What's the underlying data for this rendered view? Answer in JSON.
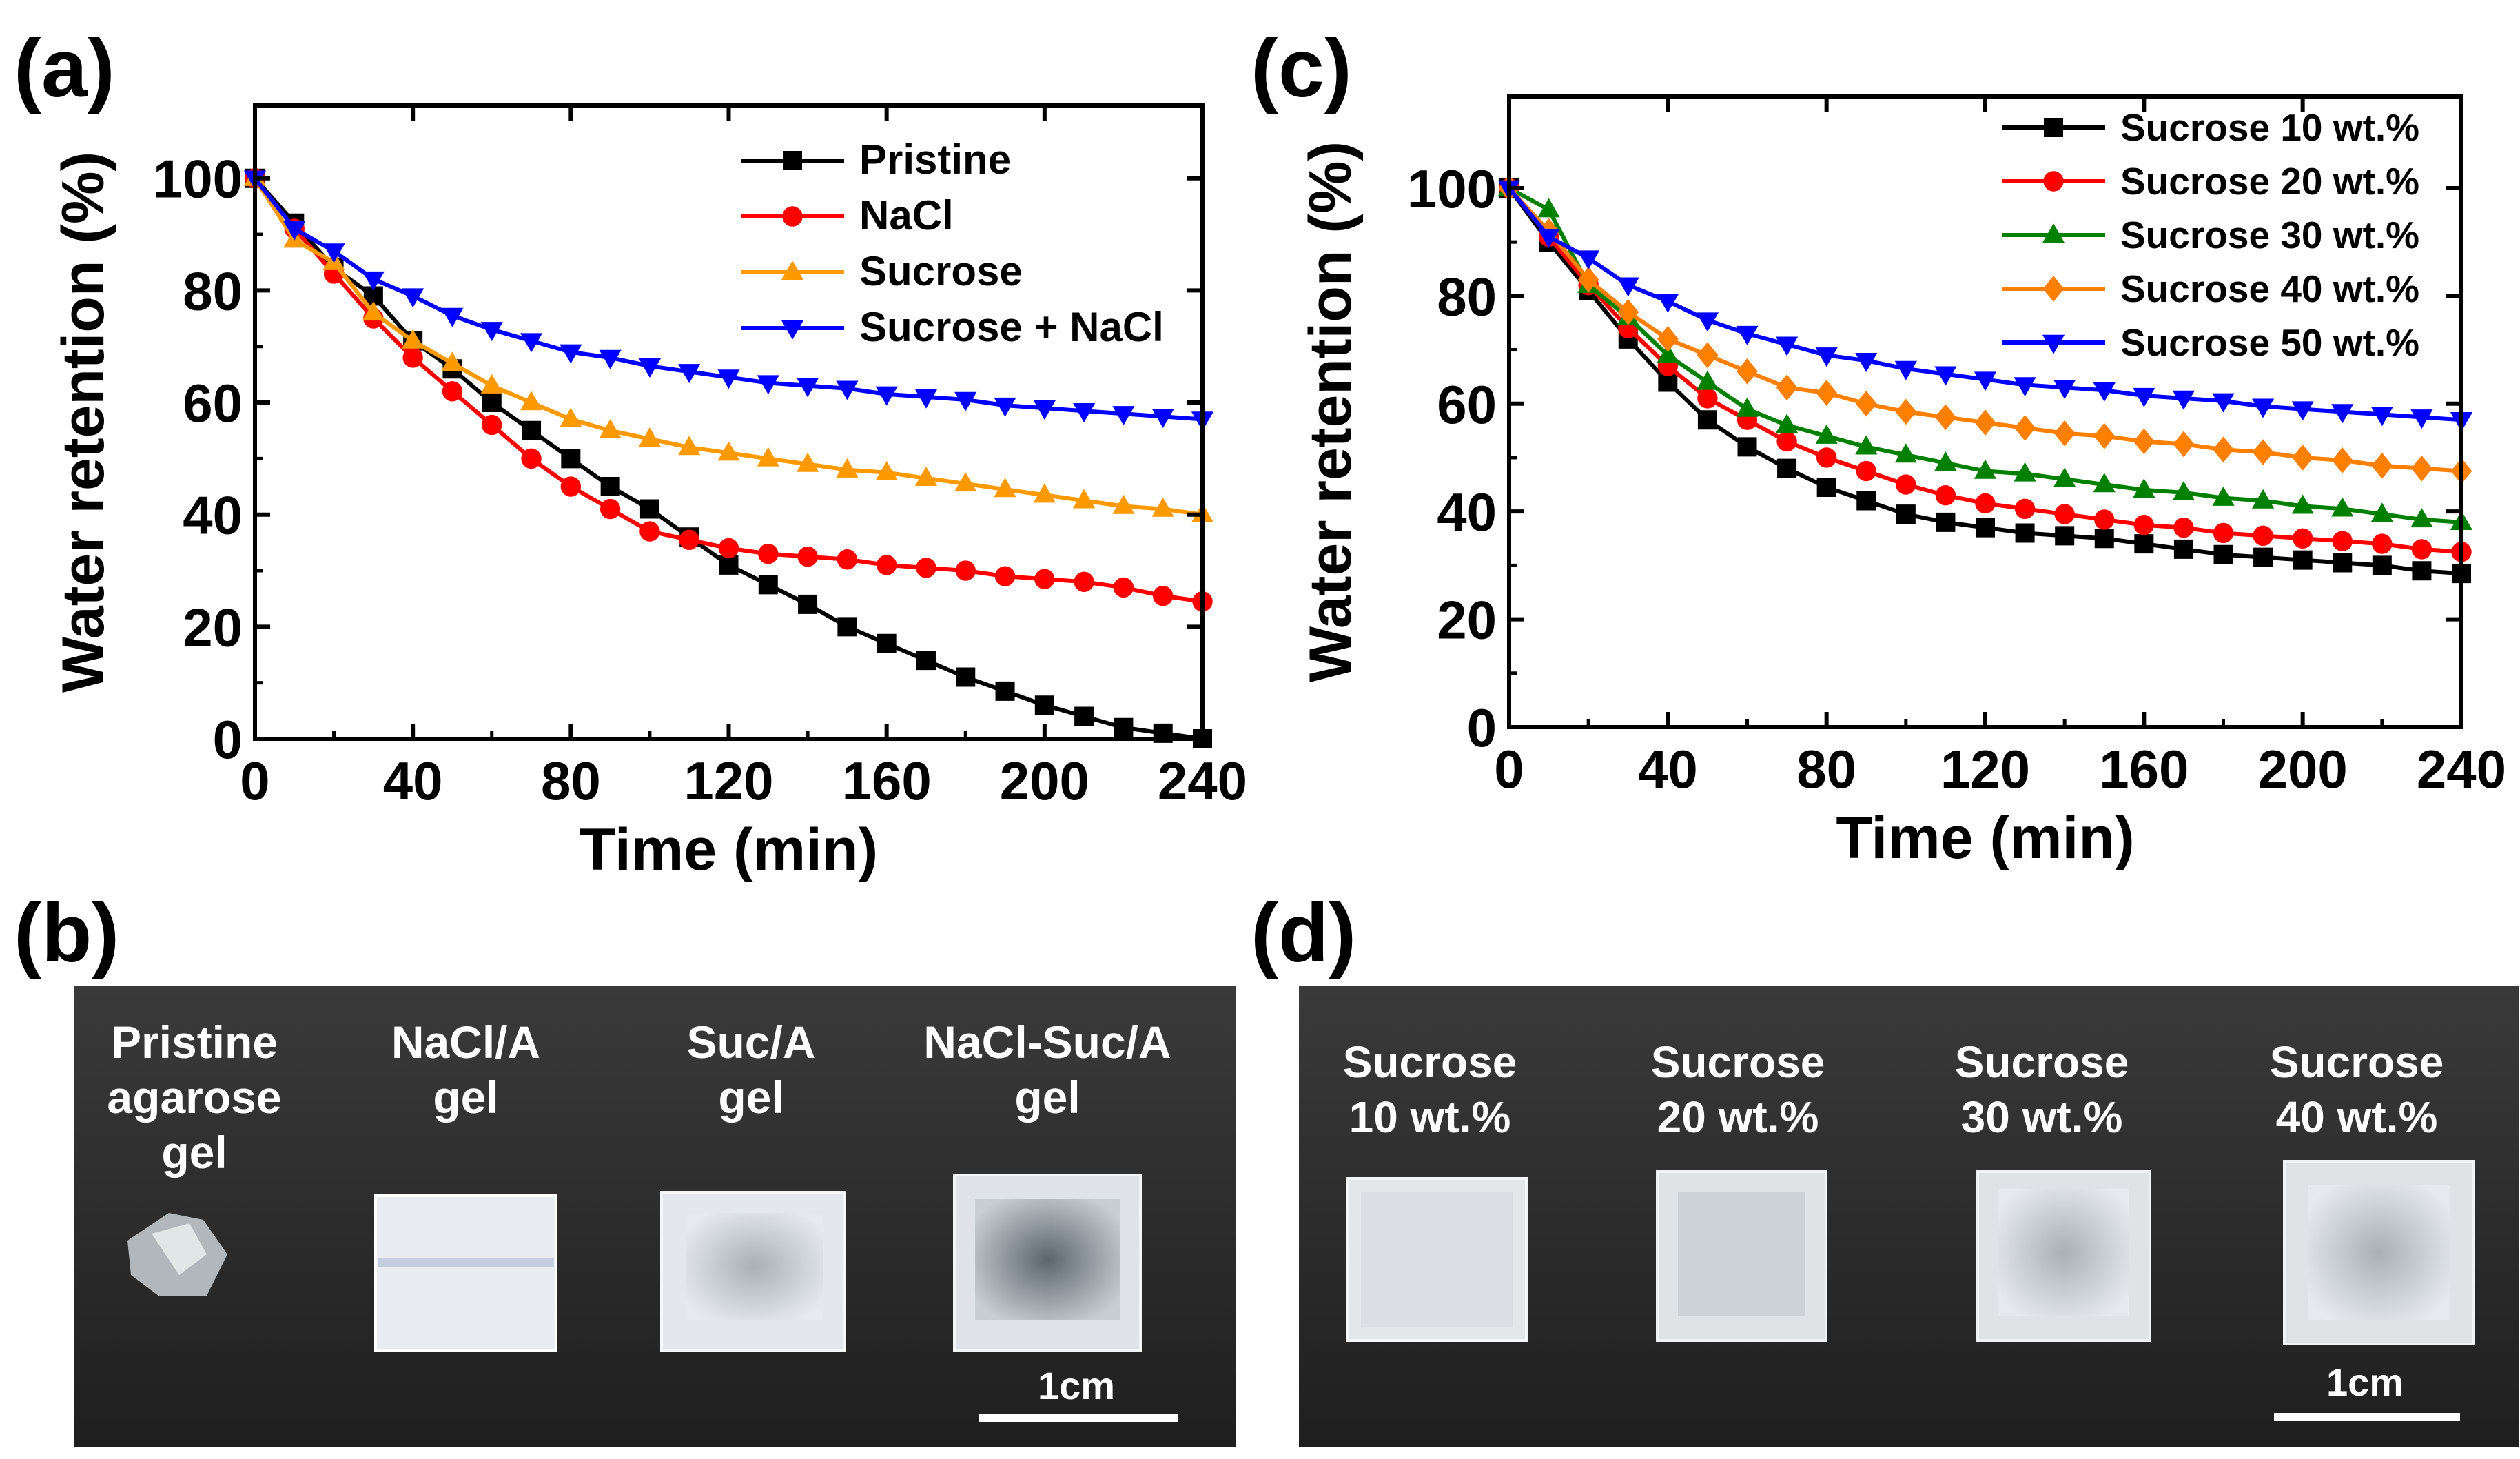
{
  "colors": {
    "black": "#000000",
    "red": "#ff0000",
    "orange": "#ff9900",
    "blue": "#0000ff",
    "green": "#008000",
    "diamond_orange": "#ff8000",
    "photo_bg": "#2a2a2a",
    "gel_white": "#e8ecef"
  },
  "chart_data": [
    {
      "panel_label": "(a)",
      "type": "line",
      "xlabel": "Time (min)",
      "ylabel": "Water retention (%)",
      "xlim": [
        0,
        240
      ],
      "ylim": [
        0,
        113
      ],
      "xticks": [
        "0",
        "40",
        "80",
        "120",
        "160",
        "200",
        "240"
      ],
      "yticks": [
        "0",
        "20",
        "40",
        "60",
        "80",
        "100"
      ],
      "legend_position": "top-right",
      "x": [
        0,
        10,
        20,
        30,
        40,
        50,
        60,
        70,
        80,
        90,
        100,
        110,
        120,
        130,
        140,
        150,
        160,
        170,
        180,
        190,
        200,
        210,
        220,
        230,
        240
      ],
      "series": [
        {
          "name": "Pristine",
          "color": "#000000",
          "marker": "square",
          "values": [
            100,
            92,
            84,
            79,
            71,
            66,
            60,
            55,
            50,
            45,
            41,
            36,
            31,
            27.5,
            24,
            20,
            17,
            14,
            11,
            8.5,
            6,
            4,
            2,
            1,
            0
          ]
        },
        {
          "name": "NaCl",
          "color": "#ff0000",
          "marker": "circle",
          "values": [
            100,
            91,
            83,
            75,
            68,
            62,
            56,
            50,
            45,
            41,
            37,
            35.5,
            34,
            33,
            32.5,
            32,
            31,
            30.5,
            30,
            29,
            28.5,
            28,
            27,
            25.5,
            24.5
          ]
        },
        {
          "name": "Sucrose",
          "color": "#ff9900",
          "marker": "triangle-up",
          "values": [
            100,
            89,
            85,
            76,
            71,
            67,
            63,
            60,
            57,
            55,
            53.5,
            52,
            51,
            50,
            49,
            48,
            47.5,
            46.5,
            45.5,
            44.5,
            43.5,
            42.5,
            41.5,
            41,
            40
          ]
        },
        {
          "name": "Sucrose + NaCl",
          "color": "#0000ff",
          "marker": "triangle-down",
          "values": [
            100,
            91,
            87,
            82,
            79,
            75.5,
            73,
            71,
            69,
            68,
            66.5,
            65.5,
            64.5,
            63.5,
            63,
            62.5,
            61.5,
            61,
            60.5,
            59.5,
            59,
            58.5,
            58,
            57.5,
            57
          ]
        }
      ]
    },
    {
      "panel_label": "(c)",
      "type": "line",
      "xlabel": "Time (min)",
      "ylabel": "Water retention (%)",
      "xlim": [
        0,
        240
      ],
      "ylim": [
        0,
        117
      ],
      "xticks": [
        "0",
        "40",
        "80",
        "120",
        "160",
        "200",
        "240"
      ],
      "yticks": [
        "0",
        "20",
        "40",
        "60",
        "80",
        "100"
      ],
      "legend_position": "top-right",
      "x": [
        0,
        10,
        20,
        30,
        40,
        50,
        60,
        70,
        80,
        90,
        100,
        110,
        120,
        130,
        140,
        150,
        160,
        170,
        180,
        190,
        200,
        210,
        220,
        230,
        240
      ],
      "series": [
        {
          "name": "Sucrose 10 wt.%",
          "color": "#000000",
          "marker": "square",
          "values": [
            100,
            90,
            81,
            72,
            64,
            57,
            52,
            48,
            44.5,
            42,
            39.5,
            38,
            37,
            36,
            35.5,
            35,
            34,
            33,
            32,
            31.5,
            31,
            30.5,
            30,
            29,
            28.5
          ]
        },
        {
          "name": "Sucrose 20 wt.%",
          "color": "#ff0000",
          "marker": "circle",
          "values": [
            100,
            91,
            82,
            74,
            67,
            61,
            57,
            53,
            50,
            47.5,
            45,
            43,
            41.5,
            40.5,
            39.5,
            38.5,
            37.5,
            37,
            36,
            35.5,
            35,
            34.5,
            34,
            33,
            32.5
          ]
        },
        {
          "name": "Sucrose 30 wt.%",
          "color": "#008000",
          "marker": "triangle-up",
          "values": [
            100,
            96,
            82,
            76,
            69,
            64,
            59,
            56,
            54,
            52,
            50.5,
            49,
            47.5,
            47,
            46,
            45,
            44,
            43.5,
            42.5,
            42,
            41,
            40.5,
            39.5,
            38.5,
            38
          ]
        },
        {
          "name": "Sucrose 40 wt.%",
          "color": "#ff8000",
          "marker": "diamond",
          "values": [
            100,
            92,
            83,
            77,
            72,
            69,
            66,
            63,
            62,
            60,
            58.5,
            57.5,
            56.5,
            55.5,
            54.5,
            54,
            53,
            52.5,
            51.5,
            51,
            50,
            49.5,
            48.5,
            48,
            47.5
          ]
        },
        {
          "name": "Sucrose 50 wt.%",
          "color": "#0000ff",
          "marker": "triangle-down",
          "values": [
            100,
            91,
            87,
            82,
            79,
            75.5,
            73,
            71,
            69,
            68,
            66.5,
            65.5,
            64.5,
            63.5,
            63,
            62.5,
            61.5,
            61,
            60.5,
            59.5,
            59,
            58.5,
            58,
            57.5,
            57
          ]
        }
      ]
    }
  ],
  "photo_b": {
    "panel_label": "(b)",
    "labels": [
      [
        "Pristine",
        "agarose",
        "gel"
      ],
      [
        "NaCl/A",
        "gel"
      ],
      [
        "Suc/A",
        "gel"
      ],
      [
        "NaCl-Suc/A",
        "gel"
      ]
    ],
    "scale_bar": "1cm"
  },
  "photo_d": {
    "panel_label": "(d)",
    "labels": [
      [
        "Sucrose",
        "10 wt.%"
      ],
      [
        "Sucrose",
        "20 wt.%"
      ],
      [
        "Sucrose",
        "30 wt.%"
      ],
      [
        "Sucrose",
        "40 wt.%"
      ]
    ],
    "scale_bar": "1cm"
  }
}
